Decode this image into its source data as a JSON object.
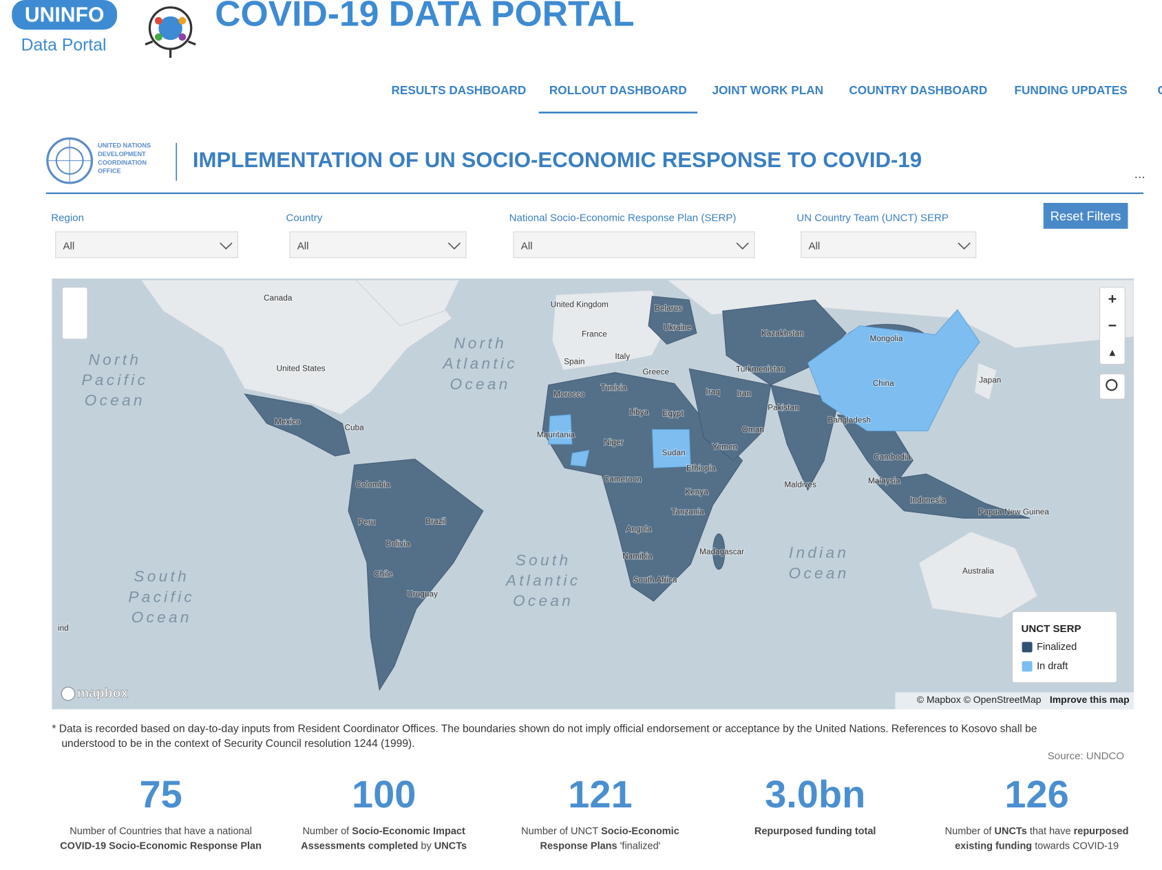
{
  "header": {
    "logo_top": "UNINFO",
    "logo_sub": "Data Portal",
    "title": "COVID-19 DATA PORTAL"
  },
  "nav": {
    "items": [
      "RESULTS DASHBOARD",
      "ROLLOUT DASHBOARD",
      "JOINT WORK PLAN",
      "COUNTRY DASHBOARD",
      "FUNDING UPDATES",
      "C"
    ],
    "active": 1
  },
  "report": {
    "org": [
      "UNITED NATIONS",
      "DEVELOPMENT",
      "COORDINATION",
      "OFFICE"
    ],
    "title": "IMPLEMENTATION OF UN SOCIO-ECONOMIC RESPONSE TO COVID-19",
    "more": "..."
  },
  "filters": [
    {
      "label": "Region",
      "value": "All"
    },
    {
      "label": "Country",
      "value": "All"
    },
    {
      "label": "National Socio-Economic Response Plan (SERP)",
      "value": "All"
    },
    {
      "label": "UN Country Team (UNCT) SERP",
      "value": "All"
    }
  ],
  "reset": "Reset Filters",
  "map": {
    "countries": [
      "Canada",
      "United States",
      "Mexico",
      "Cuba",
      "Colombia",
      "Peru",
      "Brazil",
      "Bolivia",
      "Chile",
      "Uruguay",
      "United Kingdom",
      "Belarus",
      "Ukraine",
      "France",
      "Spain",
      "Italy",
      "Greece",
      "Tunisia",
      "Morocco",
      "Libya",
      "Egypt",
      "Mauritania",
      "Niger",
      "Sudan",
      "Ethiopia",
      "Yemen",
      "Oman",
      "Iraq",
      "Iran",
      "Turkmenistan",
      "Kazakhstan",
      "Mongolia",
      "China",
      "Japan",
      "Pakistan",
      "Bangladesh",
      "Cambodia",
      "Malaysia",
      "Maldives",
      "Indonesia",
      "Papua New Guinea",
      "Cameroon",
      "Kenya",
      "Tanzania",
      "Angola",
      "Madagascar",
      "Namibia",
      "South Africa",
      "Australia",
      "ind"
    ],
    "oceans": [
      [
        "North",
        "Pacific",
        "Ocean"
      ],
      [
        "North",
        "Atlantic",
        "Ocean"
      ],
      [
        "South",
        "Atlantic",
        "Ocean"
      ],
      [
        "Indian",
        "Ocean"
      ],
      [
        "South",
        "Pacific",
        "Ocean"
      ]
    ],
    "legend": {
      "title": "UNCT SERP",
      "items": [
        {
          "name": "Finalized",
          "color": "#2f5273"
        },
        {
          "name": "In draft",
          "color": "#7dbdf0"
        }
      ]
    },
    "brand": "mapbox",
    "attribution": "© Mapbox © OpenStreetMap",
    "improve": "Improve this map"
  },
  "footnote": [
    "* Data is recorded based on day-to-day inputs from Resident Coordinator Offices. The boundaries shown do not imply official endorsement or acceptance by the United Nations. References to Kosovo shall be",
    "understood to be in the context of Security Council resolution 1244 (1999)."
  ],
  "source": "Source: UNDCO",
  "kpis": [
    {
      "value": 75,
      "lines": [
        [
          {
            "text": "Number of Countries that have a national",
            "bold": false
          }
        ],
        [
          {
            "text": "COVID-19 Socio-Economic Response Plan",
            "bold": true
          }
        ]
      ]
    },
    {
      "value": 100,
      "lines": [
        [
          {
            "text": "Number of ",
            "bold": false
          },
          {
            "text": "Socio-Economic Impact",
            "bold": true
          }
        ],
        [
          {
            "text": "Assessments completed",
            "bold": true
          },
          {
            "text": " by ",
            "bold": false
          },
          {
            "text": "UNCTs",
            "bold": true
          }
        ]
      ]
    },
    {
      "value": 121,
      "lines": [
        [
          {
            "text": "Number of UNCT ",
            "bold": false
          },
          {
            "text": "Socio-Economic",
            "bold": true
          }
        ],
        [
          {
            "text": "Response Plans",
            "bold": true
          },
          {
            "text": " 'finalized'",
            "bold": false
          }
        ]
      ]
    },
    {
      "value": "3.0bn",
      "lines": [
        [
          {
            "text": "Repurposed funding total",
            "bold": true
          }
        ]
      ]
    },
    {
      "value": 126,
      "lines": [
        [
          {
            "text": "Number of ",
            "bold": false
          },
          {
            "text": "UNCTs",
            "bold": true
          },
          {
            "text": " that have ",
            "bold": false
          },
          {
            "text": "repurposed",
            "bold": true
          }
        ],
        [
          {
            "text": "existing funding",
            "bold": true
          },
          {
            "text": " towards COVID-19",
            "bold": false
          }
        ]
      ]
    }
  ]
}
